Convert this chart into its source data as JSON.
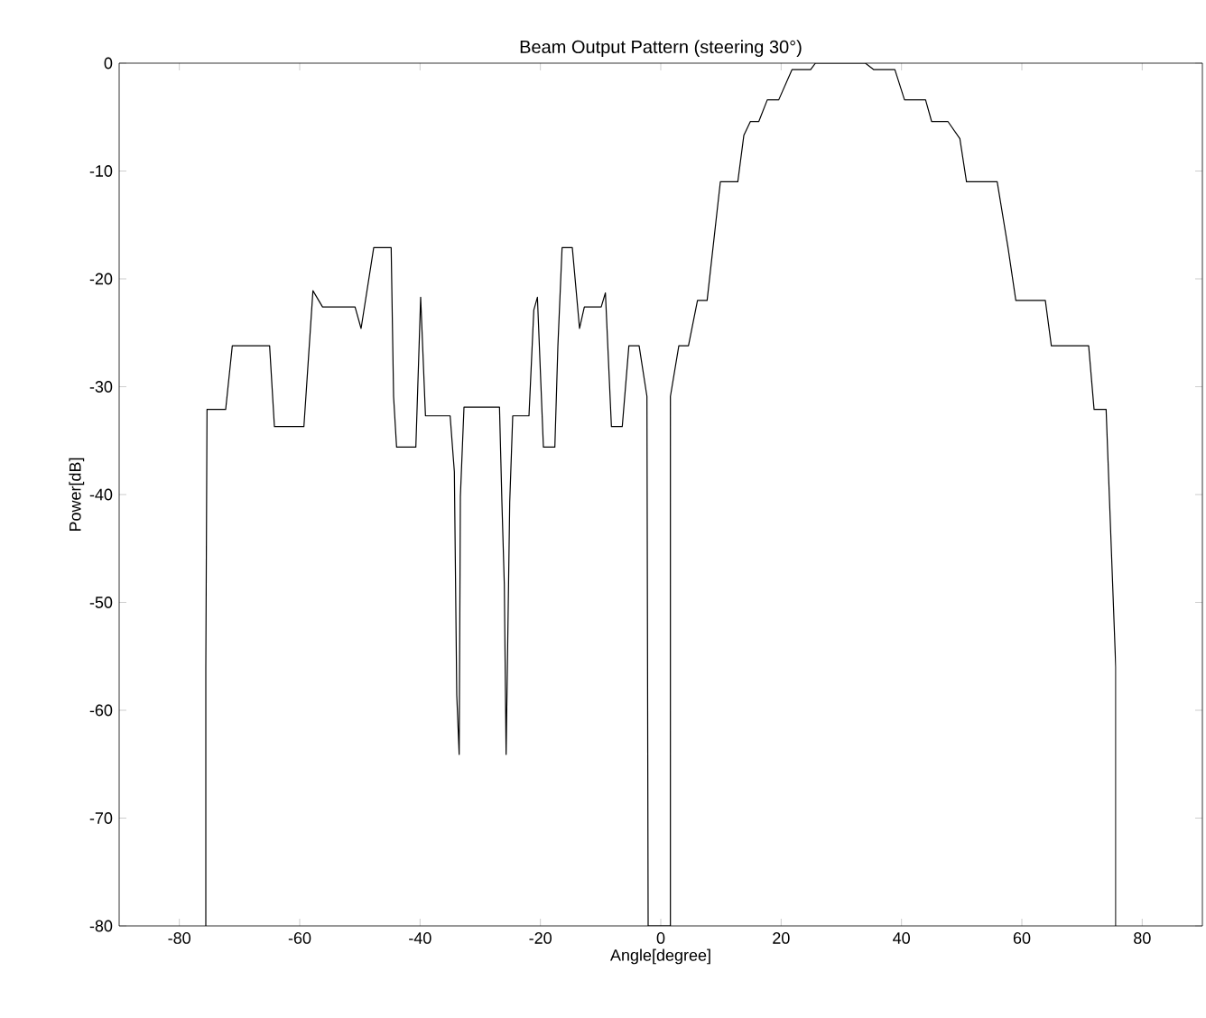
{
  "chart_data": {
    "type": "line",
    "title": "Beam Output Pattern (steering 30°)",
    "xlabel": "Angle[degree]",
    "ylabel": "Power[dB]",
    "xlim": [
      -90,
      90
    ],
    "ylim": [
      -80,
      0
    ],
    "xticks": [
      -80,
      -60,
      -40,
      -20,
      0,
      20,
      40,
      60,
      80
    ],
    "yticks": [
      -80,
      -70,
      -60,
      -50,
      -40,
      -30,
      -20,
      -10,
      0
    ],
    "grid": false,
    "marker": "none",
    "line_style": "solid",
    "series": [
      {
        "color": "#000000",
        "x": [
          -75.6,
          -75.6,
          -75.4,
          -72.3,
          -71.2,
          -65,
          -64.2,
          -59.3,
          -57.8,
          -56.2,
          -50.8,
          -49.8,
          -47.7,
          -44.8,
          -44.4,
          -43.9,
          -40.7,
          -39.9,
          -39.1,
          -35,
          -34.3,
          -33.9,
          -33.5,
          -33.3,
          -32.7,
          -26.8,
          -26.4,
          -26,
          -25.7,
          -25.1,
          -24.6,
          -21.9,
          -21.1,
          -20.5,
          -19.5,
          -17.6,
          -17.1,
          -16.4,
          -14.7,
          -13.5,
          -12.7,
          -9.9,
          -9.2,
          -8.2,
          -6.4,
          -5.3,
          -3.6,
          -2.3,
          -2.1,
          1.6,
          1.6,
          3,
          4.6,
          6.1,
          7.7,
          9.9,
          12.8,
          13.8,
          14.9,
          16.3,
          17.7,
          19.6,
          21.8,
          24.9,
          25.7,
          34,
          35.4,
          38.9,
          40.5,
          44,
          45,
          47.7,
          49.7,
          50.8,
          55.9,
          57.7,
          59,
          63.9,
          64.9,
          71.1,
          72,
          74,
          75.6,
          75.6
        ],
        "values": [
          -80,
          -56,
          -32.1,
          -32.1,
          -26.2,
          -26.2,
          -33.7,
          -33.7,
          -21.1,
          -22.6,
          -22.6,
          -24.6,
          -17.1,
          -17.1,
          -30.9,
          -35.6,
          -35.6,
          -21.7,
          -32.7,
          -32.7,
          -37.9,
          -58.6,
          -64.1,
          -40.2,
          -31.9,
          -31.9,
          -40.7,
          -48.3,
          -64.1,
          -40.7,
          -32.7,
          -32.7,
          -22.9,
          -21.7,
          -35.6,
          -35.6,
          -26.3,
          -17.1,
          -17.1,
          -24.6,
          -22.6,
          -22.6,
          -21.3,
          -33.7,
          -33.7,
          -26.2,
          -26.2,
          -30.9,
          -80,
          -80,
          -30.9,
          -26.2,
          -26.2,
          -22,
          -22,
          -11,
          -11,
          -6.7,
          -5.4,
          -5.4,
          -3.4,
          -3.4,
          -0.6,
          -0.6,
          0,
          0,
          -0.6,
          -0.6,
          -3.4,
          -3.4,
          -5.4,
          -5.4,
          -7,
          -11,
          -11,
          -17.1,
          -22,
          -22,
          -26.2,
          -26.2,
          -32.1,
          -32.1,
          -56,
          -80
        ]
      }
    ]
  }
}
